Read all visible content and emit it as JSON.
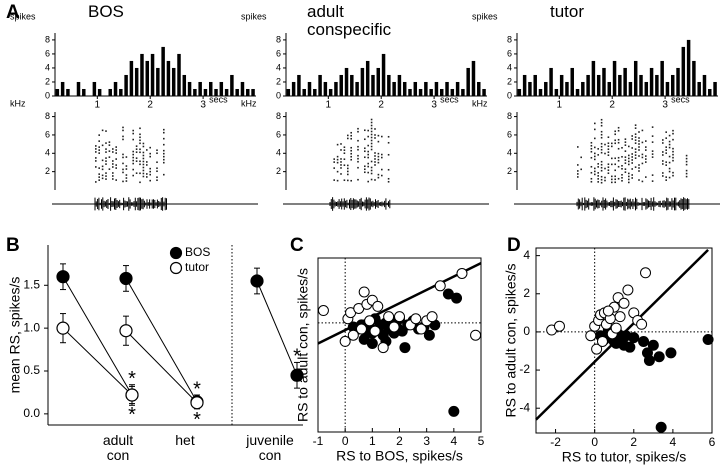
{
  "chart_data": [
    {
      "type": "histogram",
      "panel": "A",
      "title": "BOS",
      "ylabel": "spikes",
      "xlabel": "secs",
      "xlim": [
        0.2,
        4.0
      ],
      "xticks": [
        1,
        2,
        3
      ],
      "ylim": [
        0,
        8.7
      ],
      "yticks": [
        0,
        2,
        4,
        6,
        8
      ],
      "color": "#000000",
      "bins": [
        0.2,
        0.3,
        0.4,
        0.5,
        0.6,
        0.7,
        0.8,
        0.9,
        1.0,
        1.1,
        1.2,
        1.3,
        1.4,
        1.5,
        1.6,
        1.7,
        1.8,
        1.9,
        2.0,
        2.1,
        2.2,
        2.3,
        2.4,
        2.5,
        2.6,
        2.7,
        2.8,
        2.9,
        3.0,
        3.1,
        3.2,
        3.3,
        3.4,
        3.5,
        3.6,
        3.7,
        3.8,
        3.9,
        4.0
      ],
      "counts": [
        1,
        2,
        1,
        0,
        2,
        1,
        0,
        2,
        1,
        0,
        1,
        2,
        1,
        3,
        5,
        4,
        6,
        5,
        6,
        4,
        7,
        5,
        4,
        6,
        3,
        2,
        1,
        2,
        1,
        2,
        1,
        2,
        1,
        3,
        1,
        2,
        1,
        1
      ],
      "spectrogram": {
        "ylabel": "kHz",
        "ylim": [
          0,
          8.5
        ],
        "yticks": [
          2,
          4,
          6,
          8
        ]
      }
    },
    {
      "type": "histogram",
      "title": "adult\nconspecific",
      "ylabel": "spikes",
      "xlabel": "secs",
      "xlim": [
        0.2,
        4.0
      ],
      "xticks": [
        1,
        2,
        3
      ],
      "ylim": [
        0,
        8.7
      ],
      "yticks": [
        0,
        2,
        4,
        6,
        8
      ],
      "color": "#000000",
      "bins": [
        0.2,
        0.3,
        0.4,
        0.5,
        0.6,
        0.7,
        0.8,
        0.9,
        1.0,
        1.1,
        1.2,
        1.3,
        1.4,
        1.5,
        1.6,
        1.7,
        1.8,
        1.9,
        2.0,
        2.1,
        2.2,
        2.3,
        2.4,
        2.5,
        2.6,
        2.7,
        2.8,
        2.9,
        3.0,
        3.1,
        3.2,
        3.3,
        3.4,
        3.5,
        3.6,
        3.7,
        3.8,
        3.9,
        4.0
      ],
      "counts": [
        1,
        2,
        3,
        1,
        2,
        1,
        3,
        2,
        1,
        2,
        3,
        4,
        3,
        2,
        4,
        5,
        3,
        4,
        6,
        3,
        2,
        3,
        2,
        1,
        2,
        1,
        2,
        1,
        2,
        1,
        2,
        1,
        2,
        1,
        4,
        5,
        2,
        1
      ],
      "spectrogram": {
        "ylabel": "kHz",
        "ylim": [
          0,
          8.5
        ],
        "yticks": [
          2,
          4,
          6,
          8
        ]
      }
    },
    {
      "type": "histogram",
      "title": "tutor",
      "ylabel": "spikes",
      "xlabel": "secs",
      "xlim": [
        0.2,
        4.0
      ],
      "xticks": [
        1,
        2,
        3
      ],
      "ylim": [
        0,
        8.7
      ],
      "yticks": [
        0,
        2,
        4,
        6,
        8
      ],
      "color": "#000000",
      "bins": [
        0.2,
        0.3,
        0.4,
        0.5,
        0.6,
        0.7,
        0.8,
        0.9,
        1.0,
        1.1,
        1.2,
        1.3,
        1.4,
        1.5,
        1.6,
        1.7,
        1.8,
        1.9,
        2.0,
        2.1,
        2.2,
        2.3,
        2.4,
        2.5,
        2.6,
        2.7,
        2.8,
        2.9,
        3.0,
        3.1,
        3.2,
        3.3,
        3.4,
        3.5,
        3.6,
        3.7,
        3.8,
        3.9,
        4.0
      ],
      "counts": [
        1,
        3,
        2,
        3,
        1,
        2,
        4,
        1,
        3,
        2,
        4,
        1,
        2,
        3,
        5,
        3,
        4,
        2,
        5,
        3,
        4,
        2,
        5,
        3,
        2,
        4,
        3,
        5,
        2,
        3,
        4,
        7,
        8,
        5,
        2,
        3,
        1,
        2
      ],
      "spectrogram": {
        "ylabel": "kHz",
        "ylim": [
          0,
          8.5
        ],
        "yticks": [
          2,
          4,
          6,
          8
        ]
      }
    },
    {
      "type": "errorbar",
      "panel": "B",
      "ylabel": "mean RS, spikes/s",
      "categories": [
        null,
        "adult\ncon",
        null,
        "het",
        null,
        "juvenile\ncon"
      ],
      "ylim": [
        -0.13,
        1.97
      ],
      "yticks": [
        {
          "value": 0,
          "label": "0.0"
        },
        0.5,
        {
          "value": 1,
          "label": "1.0"
        },
        1.5
      ],
      "legend": "upper right",
      "series": [
        {
          "name": "BOS",
          "color": "#000000",
          "values": [
            1.6,
            0.22,
            1.58,
            0.14,
            1.55,
            0.45
          ],
          "errors": [
            0.15,
            0.12,
            0.15,
            0.08,
            0.15,
            0.15
          ],
          "value_labels": [
            null,
            "*",
            null,
            "*",
            null,
            "*"
          ]
        },
        {
          "name": "tutor",
          "color": "#ffffff",
          "values": [
            1.0,
            0.22,
            0.97,
            0.13,
            null,
            null
          ],
          "errors": [
            0.17,
            0.1,
            0.17,
            0.07,
            null,
            null
          ],
          "value_labels": [
            null,
            "*",
            null,
            "*",
            null,
            null
          ]
        }
      ]
    },
    {
      "type": "scatter",
      "panel": "C",
      "xlabel": "RS to BOS, spikes/s",
      "ylabel": "RS to adult con, spikes/s",
      "xlim": [
        -1,
        5
      ],
      "xticks": [
        -1,
        0,
        1,
        2,
        3,
        4,
        5
      ],
      "ylim": [
        -5.3,
        3.15
      ],
      "zero_lines": true,
      "fit": {
        "x": [
          -1,
          5
        ],
        "y": [
          -1,
          2.9
        ]
      },
      "series": [
        {
          "color": "#000000",
          "x": [
            0.3,
            0.5,
            0.6,
            0.8,
            0.9,
            1.0,
            1.1,
            1.2,
            1.3,
            1.4,
            1.5,
            1.6,
            1.7,
            1.8,
            1.9,
            2.0,
            2.1,
            2.2,
            2.3,
            2.5,
            2.7,
            2.9,
            3.1,
            3.3,
            3.8,
            4.1,
            4.0,
            1.0,
            0.7,
            1.5
          ],
          "y": [
            -0.2,
            -0.3,
            -0.1,
            -0.4,
            -0.2,
            -0.5,
            0.2,
            -0.3,
            -0.1,
            -0.6,
            0,
            -0.3,
            0.1,
            -0.5,
            -0.2,
            0.2,
            -0.4,
            -1.2,
            -0.1,
            0.1,
            -0.3,
            -0.2,
            -0.6,
            -0.1,
            1.4,
            1.2,
            -4.3,
            -1.0,
            -0.8,
            -0.9
          ]
        },
        {
          "color": "#ffffff",
          "x": [
            -0.8,
            0.0,
            0.1,
            0.2,
            0.3,
            0.5,
            0.6,
            0.8,
            0.9,
            1.0,
            1.1,
            1.2,
            1.4,
            1.6,
            1.8,
            2.0,
            2.4,
            2.6,
            2.8,
            3.0,
            3.2,
            3.5,
            4.3,
            4.8,
            0.7
          ],
          "y": [
            0.6,
            -0.9,
            0.2,
            0.5,
            -0.6,
            0.7,
            -0.3,
            0.9,
            0.1,
            1.1,
            -0.4,
            0.8,
            -1.2,
            0.3,
            -0.2,
            0.3,
            -0.1,
            0.2,
            -0.3,
            0.1,
            0.3,
            1.8,
            2.4,
            -0.6,
            1.5
          ]
        }
      ]
    },
    {
      "type": "scatter",
      "panel": "D",
      "xlabel": "RS to tutor, spikes/s",
      "ylabel": "RS to adult con, spikes/s",
      "xlim": [
        -3,
        6
      ],
      "xticks": [
        -2,
        0,
        2,
        4,
        6
      ],
      "ylim": [
        -5.3,
        4.4
      ],
      "yticks": [
        -4,
        -2,
        0,
        2,
        4
      ],
      "zero_lines": true,
      "fit": {
        "x": [
          -3,
          5.8
        ],
        "y": [
          -4.6,
          4.3
        ]
      },
      "series": [
        {
          "color": "#000000",
          "x": [
            0.3,
            0.5,
            0.7,
            0.9,
            1.1,
            1.2,
            1.4,
            1.6,
            1.8,
            2.0,
            2.5,
            2.7,
            2.8,
            3.0,
            3.3,
            3.4,
            3.9,
            5.8,
            1.0,
            1.5
          ],
          "y": [
            -0.2,
            -0.4,
            0.1,
            -0.3,
            -0.6,
            -0.1,
            -0.4,
            -0.2,
            -0.8,
            -0.3,
            -0.5,
            -1.1,
            -1.5,
            -0.7,
            -1.3,
            -5.0,
            -1.1,
            -0.4,
            -0.5,
            -0.7
          ]
        },
        {
          "color": "#ffffff",
          "x": [
            -2.2,
            -1.8,
            -0.2,
            0.0,
            0.1,
            0.2,
            0.3,
            0.4,
            0.5,
            0.6,
            0.8,
            0.9,
            1.0,
            1.2,
            1.3,
            1.5,
            1.7,
            2.0,
            2.2,
            2.4,
            2.6,
            1.1,
            0.7
          ],
          "y": [
            0.1,
            0.3,
            -0.2,
            0.3,
            -0.9,
            0.6,
            0.9,
            -0.5,
            1.0,
            0.4,
            0.7,
            -0.1,
            1.3,
            1.8,
            0.8,
            1.5,
            2.2,
            1.0,
            0.6,
            0.4,
            3.1,
            0.2,
            1.1
          ]
        }
      ]
    }
  ]
}
